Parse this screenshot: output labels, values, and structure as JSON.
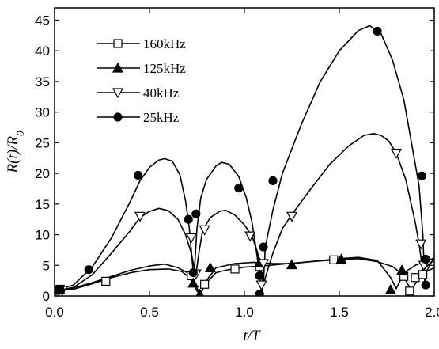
{
  "chart_data": {
    "type": "line",
    "xlabel": "t/T",
    "ylabel": "R(t)/R0",
    "xlim": [
      0,
      2.0
    ],
    "ylim": [
      0,
      47
    ],
    "x_ticks": [
      "0.0",
      "0.5",
      "1.0",
      "1.5",
      "2.0"
    ],
    "x_tick_values": [
      0,
      0.5,
      1.0,
      1.5,
      2.0
    ],
    "y_ticks": [
      "0",
      "5",
      "10",
      "15",
      "20",
      "25",
      "30",
      "35",
      "40",
      "45"
    ],
    "y_tick_values": [
      0,
      5,
      10,
      15,
      20,
      25,
      30,
      35,
      40,
      45
    ],
    "legend_position": "top-left",
    "series": [
      {
        "name": "160kHz",
        "marker": "square-open",
        "curve": [
          [
            0,
            1.0
          ],
          [
            0.1,
            1.3
          ],
          [
            0.2,
            2.2
          ],
          [
            0.3,
            3.2
          ],
          [
            0.4,
            4.2
          ],
          [
            0.5,
            4.9
          ],
          [
            0.58,
            5.2
          ],
          [
            0.65,
            4.6
          ],
          [
            0.7,
            3.8
          ],
          [
            0.72,
            3.2
          ],
          [
            0.74,
            2.0
          ],
          [
            0.765,
            0.2
          ],
          [
            0.79,
            1.8
          ],
          [
            0.85,
            3.8
          ],
          [
            0.9,
            4.2
          ],
          [
            1.0,
            4.7
          ],
          [
            1.05,
            4.8
          ],
          [
            1.08,
            4.8
          ],
          [
            1.1,
            4.9
          ],
          [
            1.2,
            5.2
          ],
          [
            1.35,
            5.6
          ],
          [
            1.47,
            5.9
          ],
          [
            1.6,
            6.1
          ],
          [
            1.7,
            5.6
          ],
          [
            1.78,
            4.8
          ],
          [
            1.83,
            3.6
          ],
          [
            1.86,
            2.0
          ],
          [
            1.88,
            0.8
          ],
          [
            1.9,
            2.0
          ],
          [
            1.93,
            3.4
          ],
          [
            1.96,
            4.0
          ],
          [
            2.0,
            4.6
          ]
        ],
        "points": [
          [
            0.0,
            1.0
          ],
          [
            0.03,
            1.1
          ],
          [
            0.27,
            2.4
          ],
          [
            0.72,
            3.3
          ],
          [
            0.79,
            1.9
          ],
          [
            0.95,
            4.4
          ],
          [
            1.08,
            4.8
          ],
          [
            1.47,
            5.9
          ],
          [
            1.84,
            3.2
          ],
          [
            1.87,
            0.8
          ],
          [
            1.9,
            3.0
          ],
          [
            1.94,
            3.5
          ]
        ]
      },
      {
        "name": "125kHz",
        "marker": "triangle-up-filled",
        "curve": [
          [
            0,
            0.9
          ],
          [
            0.1,
            1.1
          ],
          [
            0.2,
            2.0
          ],
          [
            0.3,
            3.0
          ],
          [
            0.4,
            3.8
          ],
          [
            0.5,
            4.3
          ],
          [
            0.6,
            4.4
          ],
          [
            0.67,
            4.0
          ],
          [
            0.71,
            3.0
          ],
          [
            0.73,
            2.0
          ],
          [
            0.75,
            0.8
          ],
          [
            0.77,
            0.3
          ],
          [
            0.8,
            2.5
          ],
          [
            0.85,
            4.6
          ],
          [
            0.95,
            5.3
          ],
          [
            1.05,
            5.5
          ],
          [
            1.09,
            5.4
          ],
          [
            1.15,
            5.3
          ],
          [
            1.25,
            5.3
          ],
          [
            1.35,
            5.6
          ],
          [
            1.5,
            6.1
          ],
          [
            1.6,
            6.3
          ],
          [
            1.7,
            5.8
          ],
          [
            1.77,
            3.0
          ],
          [
            1.8,
            1.2
          ],
          [
            1.82,
            2.5
          ],
          [
            1.86,
            4.2
          ],
          [
            1.9,
            5.0
          ],
          [
            1.95,
            5.6
          ],
          [
            2.0,
            6.2
          ]
        ],
        "points": [
          [
            0.0,
            0.9
          ],
          [
            0.73,
            2.1
          ],
          [
            0.765,
            0.3
          ],
          [
            0.82,
            4.6
          ],
          [
            1.08,
            5.4
          ],
          [
            1.25,
            5.1
          ],
          [
            1.51,
            6.0
          ],
          [
            1.77,
            1.0
          ],
          [
            1.83,
            4.2
          ]
        ]
      },
      {
        "name": "40kHz",
        "marker": "triangle-down-open",
        "curve": [
          [
            0,
            0.8
          ],
          [
            0.1,
            1.4
          ],
          [
            0.2,
            3.5
          ],
          [
            0.3,
            7.0
          ],
          [
            0.4,
            10.7
          ],
          [
            0.45,
            12.8
          ],
          [
            0.5,
            13.8
          ],
          [
            0.55,
            14.3
          ],
          [
            0.6,
            13.9
          ],
          [
            0.65,
            12.5
          ],
          [
            0.69,
            10.0
          ],
          [
            0.72,
            7.0
          ],
          [
            0.74,
            4.0
          ],
          [
            0.745,
            3.6
          ],
          [
            0.76,
            7.0
          ],
          [
            0.78,
            10.7
          ],
          [
            0.82,
            12.8
          ],
          [
            0.87,
            13.8
          ],
          [
            0.9,
            14.0
          ],
          [
            0.95,
            13.2
          ],
          [
            1.0,
            11.6
          ],
          [
            1.04,
            9.8
          ],
          [
            1.07,
            7.0
          ],
          [
            1.09,
            3.8
          ],
          [
            1.1,
            1.6
          ],
          [
            1.11,
            3.0
          ],
          [
            1.15,
            7.0
          ],
          [
            1.2,
            11.0
          ],
          [
            1.25,
            13.3
          ],
          [
            1.35,
            17.5
          ],
          [
            1.45,
            21.5
          ],
          [
            1.55,
            24.5
          ],
          [
            1.63,
            26.2
          ],
          [
            1.68,
            26.5
          ],
          [
            1.72,
            26.2
          ],
          [
            1.76,
            25.3
          ],
          [
            1.8,
            23.3
          ],
          [
            1.85,
            19.0
          ],
          [
            1.9,
            12.0
          ],
          [
            1.92,
            8.5
          ],
          [
            1.94,
            4.0
          ],
          [
            1.96,
            4.8
          ],
          [
            2.0,
            6.0
          ]
        ],
        "points": [
          [
            0.0,
            0.8
          ],
          [
            0.04,
            0.9
          ],
          [
            0.45,
            13.0
          ],
          [
            0.72,
            9.5
          ],
          [
            0.745,
            3.6
          ],
          [
            0.79,
            10.8
          ],
          [
            1.03,
            9.8
          ],
          [
            1.09,
            1.8
          ],
          [
            1.1,
            5.3
          ],
          [
            1.25,
            13.0
          ],
          [
            1.8,
            23.3
          ],
          [
            1.93,
            8.5
          ],
          [
            1.945,
            5.0
          ]
        ]
      },
      {
        "name": "25kHz",
        "marker": "circle-filled",
        "curve": [
          [
            0,
            0.9
          ],
          [
            0.1,
            1.8
          ],
          [
            0.2,
            4.8
          ],
          [
            0.3,
            9.5
          ],
          [
            0.4,
            15.5
          ],
          [
            0.45,
            18.8
          ],
          [
            0.5,
            21.0
          ],
          [
            0.55,
            22.2
          ],
          [
            0.58,
            22.4
          ],
          [
            0.62,
            22.0
          ],
          [
            0.66,
            19.8
          ],
          [
            0.69,
            15.5
          ],
          [
            0.71,
            11.0
          ],
          [
            0.73,
            4.0
          ],
          [
            0.735,
            3.4
          ],
          [
            0.75,
            11.0
          ],
          [
            0.77,
            16.0
          ],
          [
            0.8,
            19.0
          ],
          [
            0.85,
            21.2
          ],
          [
            0.88,
            21.8
          ],
          [
            0.92,
            21.5
          ],
          [
            0.97,
            19.5
          ],
          [
            1.01,
            16.0
          ],
          [
            1.04,
            12.0
          ],
          [
            1.06,
            8.0
          ],
          [
            1.08,
            3.5
          ],
          [
            1.09,
            0.5
          ],
          [
            1.1,
            2.0
          ],
          [
            1.11,
            8.0
          ],
          [
            1.15,
            14.0
          ],
          [
            1.2,
            20.0
          ],
          [
            1.3,
            28.0
          ],
          [
            1.4,
            35.0
          ],
          [
            1.5,
            40.0
          ],
          [
            1.6,
            43.3
          ],
          [
            1.66,
            44.1
          ],
          [
            1.72,
            42.8
          ],
          [
            1.78,
            38.5
          ],
          [
            1.84,
            32.0
          ],
          [
            1.88,
            25.0
          ],
          [
            1.92,
            18.0
          ],
          [
            1.94,
            10.0
          ],
          [
            1.95,
            2.0
          ],
          [
            1.96,
            4.0
          ],
          [
            1.98,
            5.3
          ],
          [
            2.0,
            6.0
          ]
        ],
        "points": [
          [
            0.0,
            0.9
          ],
          [
            0.03,
            1.0
          ],
          [
            0.18,
            4.3
          ],
          [
            0.44,
            19.7
          ],
          [
            0.705,
            12.5
          ],
          [
            0.73,
            3.8
          ],
          [
            0.745,
            13.4
          ],
          [
            0.97,
            17.6
          ],
          [
            1.08,
            0.3
          ],
          [
            1.08,
            3.3
          ],
          [
            1.1,
            8.0
          ],
          [
            1.15,
            18.8
          ],
          [
            1.7,
            43.2
          ],
          [
            1.935,
            19.6
          ],
          [
            1.955,
            6.0
          ],
          [
            1.955,
            1.8
          ]
        ]
      }
    ]
  }
}
